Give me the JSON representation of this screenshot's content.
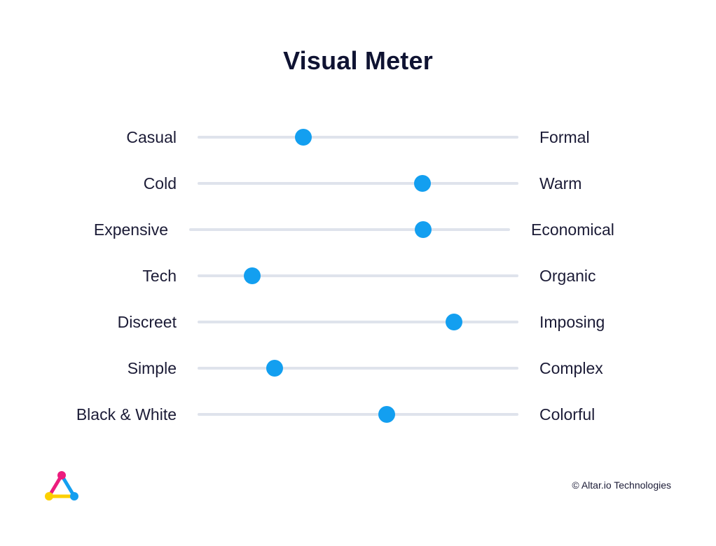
{
  "title": "Visual Meter",
  "accent_color": "#139ff0",
  "track_color": "#dfe3ec",
  "meters": [
    {
      "left": "Casual",
      "right": "Formal",
      "value": 0.33
    },
    {
      "left": "Cold",
      "right": "Warm",
      "value": 0.7
    },
    {
      "left": "Expensive",
      "right": "Economical",
      "value": 0.73
    },
    {
      "left": "Tech",
      "right": "Organic",
      "value": 0.17
    },
    {
      "left": "Discreet",
      "right": "Imposing",
      "value": 0.8
    },
    {
      "left": "Simple",
      "right": "Complex",
      "value": 0.24
    },
    {
      "left": "Black & White",
      "right": "Colorful",
      "value": 0.59
    }
  ],
  "logo": {
    "icon": "triangle-logo-icon",
    "colors": [
      "#ec1c7d",
      "#139ff0",
      "#fcd000"
    ]
  },
  "footer": {
    "copyright": "© Altar.io Technologies"
  }
}
